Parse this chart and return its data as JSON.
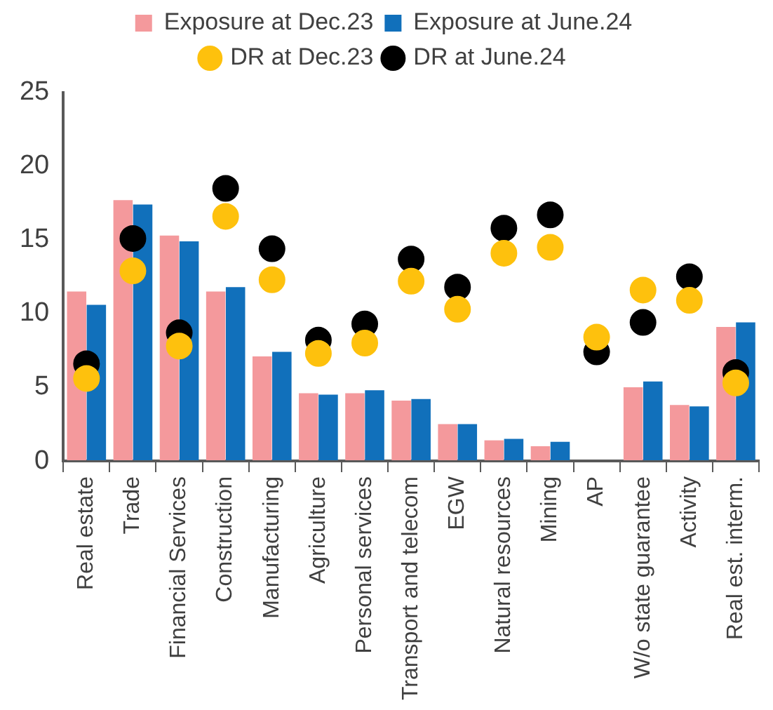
{
  "chart_data": {
    "type": "bar",
    "categories": [
      "Real estate",
      "Trade",
      "Financial Services",
      "Construction",
      "Manufacturing",
      "Agriculture",
      "Personal services",
      "Transport and telecom",
      "EGW",
      "Natural resources",
      "Mining",
      "AP",
      "W/o state guarantee",
      "Activity",
      "Real est. interm."
    ],
    "series": [
      {
        "name": "Exposure at Dec.23",
        "color": "#f4999c",
        "values": [
          11.5,
          17.7,
          15.3,
          11.5,
          7.1,
          4.6,
          4.6,
          4.1,
          2.5,
          1.4,
          1.0,
          null,
          5.0,
          3.8,
          9.1
        ]
      },
      {
        "name": "Exposure at June.24",
        "color": "#1170bb",
        "values": [
          10.6,
          17.4,
          14.9,
          11.8,
          7.4,
          4.5,
          4.8,
          4.2,
          2.5,
          1.5,
          1.3,
          null,
          5.4,
          3.7,
          9.4
        ]
      },
      {
        "name": "DR at Dec.23",
        "type": "scatter",
        "color": "#fec10d",
        "values": [
          5.6,
          12.9,
          7.8,
          16.6,
          12.3,
          7.3,
          8.0,
          12.2,
          10.3,
          14.1,
          14.5,
          8.4,
          11.6,
          10.9,
          5.3
        ]
      },
      {
        "name": "DR at June.24",
        "type": "scatter",
        "color": "#000000",
        "values": [
          6.6,
          15.1,
          8.7,
          18.5,
          14.4,
          8.2,
          9.3,
          13.7,
          11.8,
          15.8,
          16.7,
          7.4,
          9.4,
          12.5,
          6.0
        ]
      }
    ],
    "ylim": [
      0,
      25
    ],
    "yticks": [
      0,
      5,
      10,
      15,
      20,
      25
    ],
    "grid": false,
    "legend": "top",
    "marker": "circle"
  }
}
